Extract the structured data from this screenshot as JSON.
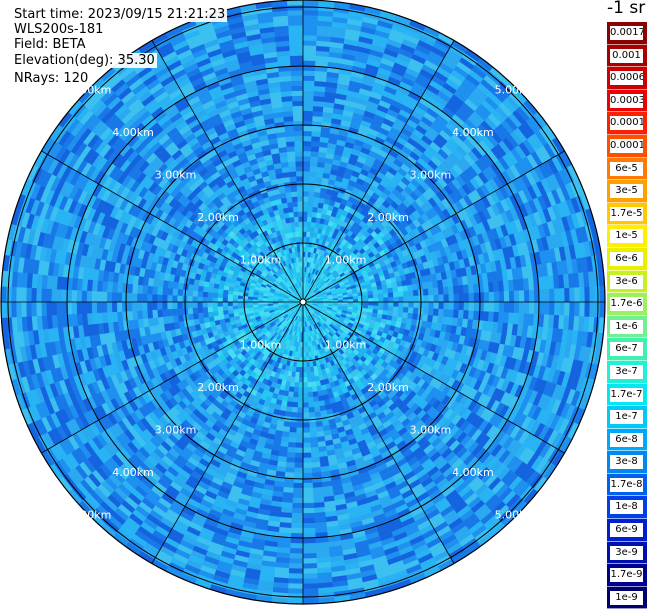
{
  "info": {
    "start_time": "Start time: 2023/09/15 21:21:23",
    "instrument": "WLS200s-181",
    "field": "Field: BETA",
    "elevation": "Elevation(deg): 35.30",
    "nrays": "NRays: 120"
  },
  "colorbar": {
    "unit": "-1 sr",
    "levels": [
      {
        "label": "0.0017",
        "color": "#8b0000"
      },
      {
        "label": "0.001",
        "color": "#a80000"
      },
      {
        "label": "0.0006",
        "color": "#cc0000"
      },
      {
        "label": "0.0003",
        "color": "#ee0000"
      },
      {
        "label": "0.00017",
        "color": "#ff2000"
      },
      {
        "label": "0.0001",
        "color": "#ff5000"
      },
      {
        "label": "6e-5",
        "color": "#ff7a00"
      },
      {
        "label": "3e-5",
        "color": "#ffa000"
      },
      {
        "label": "1.7e-5",
        "color": "#ffc800"
      },
      {
        "label": "1e-5",
        "color": "#ffee00"
      },
      {
        "label": "6e-6",
        "color": "#e8f000"
      },
      {
        "label": "3e-6",
        "color": "#c4f024"
      },
      {
        "label": "1.7e-6",
        "color": "#9cf060"
      },
      {
        "label": "1e-6",
        "color": "#70f090"
      },
      {
        "label": "6e-7",
        "color": "#40f0b0"
      },
      {
        "label": "3e-7",
        "color": "#20f0d8"
      },
      {
        "label": "1.7e-7",
        "color": "#00e8f0"
      },
      {
        "label": "1e-7",
        "color": "#00c8f8"
      },
      {
        "label": "6e-8",
        "color": "#00a8f8"
      },
      {
        "label": "3e-8",
        "color": "#0088f0"
      },
      {
        "label": "1.7e-8",
        "color": "#0060f0"
      },
      {
        "label": "1e-8",
        "color": "#0040e8"
      },
      {
        "label": "6e-9",
        "color": "#0020d0"
      },
      {
        "label": "3e-9",
        "color": "#0010b0"
      },
      {
        "label": "1.7e-9",
        "color": "#000090"
      },
      {
        "label": "1e-9",
        "color": "#000070"
      }
    ]
  },
  "range_rings": [
    {
      "range_km": 1,
      "label": "1.00km"
    },
    {
      "range_km": 2,
      "label": "2.00km"
    },
    {
      "range_km": 3,
      "label": "3.00km"
    },
    {
      "range_km": 4,
      "label": "4.00km"
    },
    {
      "range_km": 5,
      "label": "5.00km"
    }
  ],
  "spokes_deg": [
    0,
    30,
    60,
    90,
    120,
    150,
    180,
    210,
    240,
    270,
    300,
    330
  ],
  "map_colors": {
    "near": [
      "#22c8f0",
      "#30d4f4",
      "#1eb4ee",
      "#48dcf2"
    ],
    "far": [
      "#1e90f0",
      "#2aa8f0",
      "#1878e8",
      "#3cc0f0",
      "#1464e0",
      "#28b4f4"
    ]
  }
}
